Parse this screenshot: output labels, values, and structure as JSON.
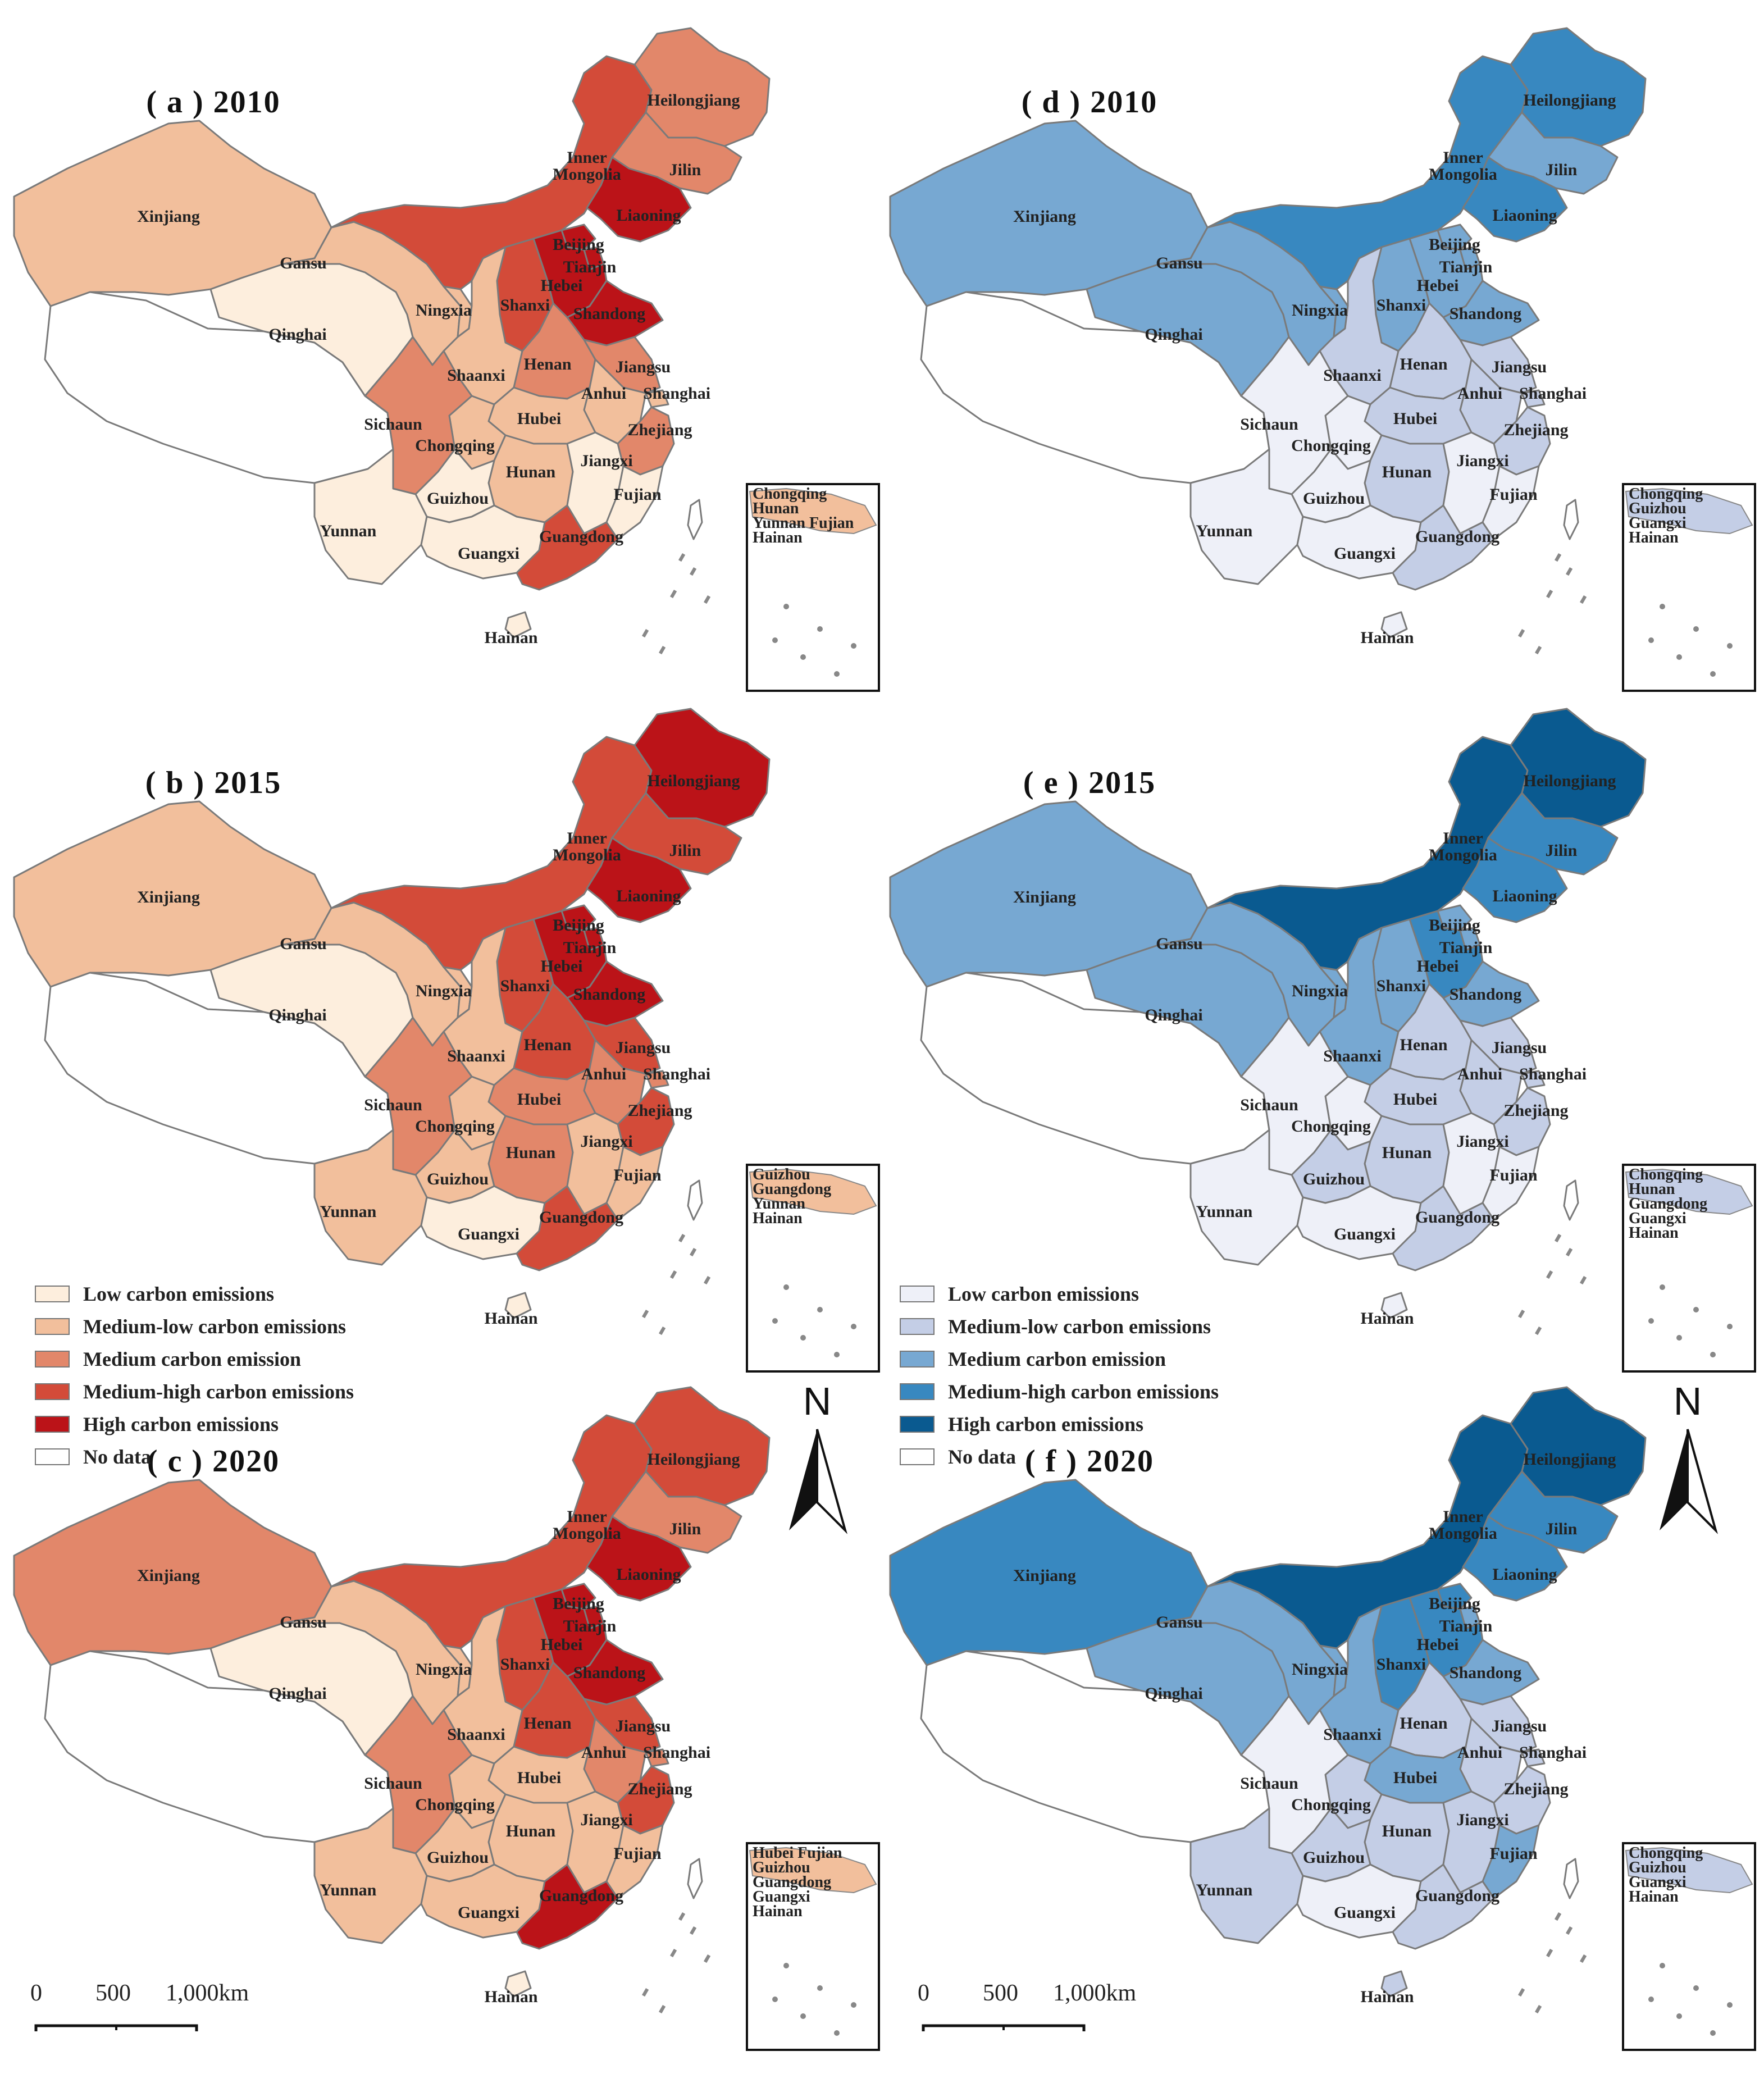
{
  "panels": [
    {
      "id": "a",
      "title": "( a )  2010",
      "palette": "red",
      "levels": {
        "Xinjiang": 1,
        "Gansu": 1,
        "Qinghai": 0,
        "Ningxia": 1,
        "Inner Mongolia": 3,
        "Heilongjiang": 2,
        "Jilin": 2,
        "Liaoning": 4,
        "Beijing": 4,
        "Tianjin": 4,
        "Hebei": 4,
        "Shanxi": 3,
        "Shandong": 4,
        "Shaanxi": 1,
        "Henan": 2,
        "Jiangsu": 2,
        "Anhui": 1,
        "Shanghai": 1,
        "Sichaun": 2,
        "Chongqing": 1,
        "Hubei": 1,
        "Zhejiang": 2,
        "Hunan": 1,
        "Jiangxi": 0,
        "Guizhou": 0,
        "Fujian": 0,
        "Yunnan": 0,
        "Guangxi": 0,
        "Guangdong": 3,
        "Hainan": 0,
        "Tibet": -1,
        "Taiwan": -1
      },
      "inset_labels": [
        "Chongqing",
        "Hunan",
        "Yunnan Fujian",
        "Hainan"
      ]
    },
    {
      "id": "d",
      "title": "( d )  2010",
      "palette": "blue",
      "levels": {
        "Xinjiang": 2,
        "Gansu": 2,
        "Qinghai": 2,
        "Ningxia": 2,
        "Inner Mongolia": 3,
        "Heilongjiang": 3,
        "Jilin": 2,
        "Liaoning": 3,
        "Beijing": 2,
        "Tianjin": 2,
        "Hebei": 2,
        "Shanxi": 2,
        "Shandong": 2,
        "Shaanxi": 1,
        "Henan": 1,
        "Jiangsu": 1,
        "Anhui": 1,
        "Shanghai": 1,
        "Sichaun": 0,
        "Chongqing": 0,
        "Hubei": 1,
        "Zhejiang": 1,
        "Hunan": 1,
        "Jiangxi": 0,
        "Guizhou": 0,
        "Fujian": 0,
        "Yunnan": 0,
        "Guangxi": 0,
        "Guangdong": 1,
        "Hainan": 0,
        "Tibet": -1,
        "Taiwan": -1
      },
      "inset_labels": [
        "Chongqing",
        "Guizhou",
        "Guangxi",
        "Hainan"
      ]
    },
    {
      "id": "b",
      "title": "( b ) 2015",
      "palette": "red",
      "levels": {
        "Xinjiang": 1,
        "Gansu": 1,
        "Qinghai": 0,
        "Ningxia": 1,
        "Inner Mongolia": 3,
        "Heilongjiang": 4,
        "Jilin": 3,
        "Liaoning": 4,
        "Beijing": 4,
        "Tianjin": 4,
        "Hebei": 4,
        "Shanxi": 3,
        "Shandong": 4,
        "Shaanxi": 1,
        "Henan": 3,
        "Jiangsu": 3,
        "Anhui": 2,
        "Shanghai": 2,
        "Sichaun": 2,
        "Chongqing": 1,
        "Hubei": 2,
        "Zhejiang": 3,
        "Hunan": 2,
        "Jiangxi": 1,
        "Guizhou": 1,
        "Fujian": 1,
        "Yunnan": 1,
        "Guangxi": 0,
        "Guangdong": 3,
        "Hainan": 0,
        "Tibet": -1,
        "Taiwan": -1
      },
      "inset_labels": [
        "Guizhou",
        "Guangdong",
        "Yunnan",
        "Hainan"
      ]
    },
    {
      "id": "e",
      "title": "( e ) 2015",
      "palette": "blue",
      "levels": {
        "Xinjiang": 2,
        "Gansu": 2,
        "Qinghai": 2,
        "Ningxia": 2,
        "Inner Mongolia": 4,
        "Heilongjiang": 4,
        "Jilin": 3,
        "Liaoning": 3,
        "Beijing": 2,
        "Tianjin": 2,
        "Hebei": 3,
        "Shanxi": 2,
        "Shandong": 2,
        "Shaanxi": 2,
        "Henan": 1,
        "Jiangsu": 1,
        "Anhui": 1,
        "Shanghai": 1,
        "Sichaun": 0,
        "Chongqing": 0,
        "Hubei": 1,
        "Zhejiang": 1,
        "Hunan": 1,
        "Jiangxi": 0,
        "Guizhou": 1,
        "Fujian": 0,
        "Yunnan": 0,
        "Guangxi": 0,
        "Guangdong": 1,
        "Hainan": 0,
        "Tibet": -1,
        "Taiwan": -1
      },
      "inset_labels": [
        "Chongqing",
        "Hunan",
        "Guangdong",
        "Guangxi",
        "Hainan"
      ]
    },
    {
      "id": "c",
      "title": "( c ) 2020",
      "palette": "red",
      "levels": {
        "Xinjiang": 2,
        "Gansu": 1,
        "Qinghai": 0,
        "Ningxia": 1,
        "Inner Mongolia": 3,
        "Heilongjiang": 3,
        "Jilin": 2,
        "Liaoning": 4,
        "Beijing": 4,
        "Tianjin": 4,
        "Hebei": 4,
        "Shanxi": 3,
        "Shandong": 4,
        "Shaanxi": 1,
        "Henan": 3,
        "Jiangsu": 3,
        "Anhui": 2,
        "Shanghai": 2,
        "Sichaun": 2,
        "Chongqing": 1,
        "Hubei": 1,
        "Zhejiang": 3,
        "Hunan": 1,
        "Jiangxi": 1,
        "Guizhou": 1,
        "Fujian": 1,
        "Yunnan": 1,
        "Guangxi": 1,
        "Guangdong": 4,
        "Hainan": 0,
        "Tibet": -1,
        "Taiwan": -1
      },
      "inset_labels": [
        "Hubei Fujian",
        "Guizhou",
        "Guangdong",
        "Guangxi",
        "Hainan"
      ]
    },
    {
      "id": "f",
      "title": "( f ) 2020",
      "palette": "blue",
      "levels": {
        "Xinjiang": 3,
        "Gansu": 2,
        "Qinghai": 2,
        "Ningxia": 2,
        "Inner Mongolia": 4,
        "Heilongjiang": 4,
        "Jilin": 3,
        "Liaoning": 3,
        "Beijing": 3,
        "Tianjin": 2,
        "Hebei": 3,
        "Shanxi": 3,
        "Shandong": 2,
        "Shaanxi": 2,
        "Henan": 1,
        "Jiangsu": 1,
        "Anhui": 1,
        "Shanghai": 1,
        "Sichaun": 0,
        "Chongqing": 1,
        "Hubei": 2,
        "Zhejiang": 1,
        "Hunan": 1,
        "Jiangxi": 1,
        "Guizhou": 1,
        "Fujian": 2,
        "Yunnan": 1,
        "Guangxi": 0,
        "Guangdong": 1,
        "Hainan": 1,
        "Tibet": -1,
        "Taiwan": -1
      },
      "inset_labels": [
        "Chongqing",
        "Guizhou",
        "Guangxi",
        "Hainan"
      ]
    }
  ],
  "palettes": {
    "red": [
      "#fdeedd",
      "#f2bf9c",
      "#e2876a",
      "#d34b39",
      "#bb1318"
    ],
    "blue": [
      "#eef0f8",
      "#c4cee6",
      "#77a8d2",
      "#3888c0",
      "#0a5a90"
    ],
    "nodata": "#ffffff",
    "border": "#7a7a7a"
  },
  "legend": {
    "items": [
      "Low carbon emissions",
      "Medium-low carbon emissions",
      "Medium carbon emission",
      "Medium-high carbon emissions",
      "High carbon emissions",
      "No data"
    ]
  },
  "north_label": "N",
  "scale": {
    "ticks": [
      "0",
      "500",
      "1,000km"
    ]
  }
}
